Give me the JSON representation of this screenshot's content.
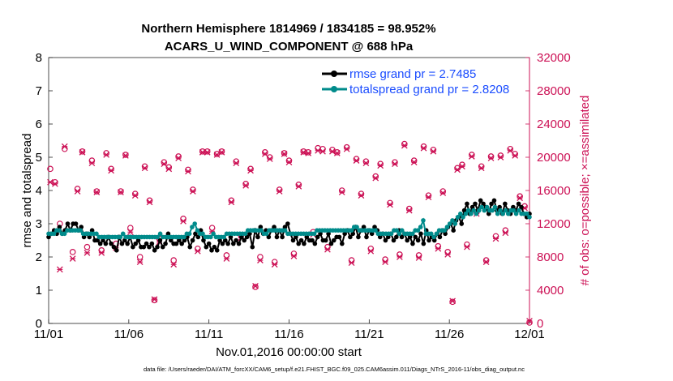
{
  "chart_data": {
    "type": "line",
    "title": "Northern Hemisphere 1814969 / 1834185 = 98.952%",
    "subtitle": "ACARS_U_WIND_COMPONENT @ 688 hPa",
    "xlabel": "Nov.01,2016 00:00:00 start",
    "ylabel": "rmse and totalspread",
    "y2label": "# of obs: o=possible; ×=assimilated",
    "footer": "data file: /Users/raeder/DAI/ATM_forcXX/CAM6_setup/f.e21.FHIST_BGC.f09_025.CAM6assim.011/Diags_NTrS_2016-11/obs_diag_output.nc",
    "xticks": [
      "11/01",
      "11/06",
      "11/11",
      "11/16",
      "11/21",
      "11/26",
      "12/01"
    ],
    "xlim_days": [
      0,
      30
    ],
    "ylim": [
      0,
      8
    ],
    "yticks": [
      "0",
      "1",
      "2",
      "3",
      "4",
      "5",
      "6",
      "7",
      "8"
    ],
    "y2lim": [
      0,
      32000
    ],
    "y2ticks": [
      "0",
      "4000",
      "8000",
      "12000",
      "16000",
      "20000",
      "24000",
      "28000",
      "32000"
    ],
    "grid": false,
    "legend_placement": "top-right",
    "colors": {
      "rmse": "#000000",
      "spread": "#008b8b",
      "obs": "#cc1155",
      "legend_text": "#1a4cff"
    },
    "series": [
      {
        "name": "rmse grand pr = 2.7485",
        "color": "#000000",
        "marker": "circle",
        "values": [
          2.6,
          2.7,
          2.8,
          2.7,
          2.9,
          2.7,
          2.8,
          3.0,
          2.8,
          3.0,
          3.0,
          2.8,
          2.9,
          2.6,
          2.7,
          2.6,
          2.8,
          2.5,
          2.5,
          2.4,
          2.5,
          2.4,
          2.6,
          2.4,
          2.3,
          2.2,
          2.6,
          2.4,
          2.5,
          2.4,
          2.6,
          2.3,
          2.4,
          2.5,
          2.3,
          2.3,
          2.4,
          2.3,
          2.4,
          2.2,
          2.3,
          2.5,
          2.3,
          2.4,
          2.7,
          2.5,
          2.4,
          2.4,
          2.5,
          2.4,
          2.5,
          2.6,
          2.3,
          2.5,
          2.7,
          2.6,
          2.8,
          2.5,
          2.3,
          2.4,
          2.2,
          2.3,
          2.2,
          2.5,
          2.4,
          2.5,
          2.4,
          2.6,
          2.4,
          2.5,
          2.4,
          2.6,
          2.5,
          2.6,
          2.7,
          2.3,
          2.8,
          2.6,
          2.9,
          2.7,
          2.8,
          2.6,
          2.8,
          2.9,
          2.6,
          2.8,
          2.6,
          2.9,
          3.0,
          2.7,
          2.5,
          2.6,
          2.4,
          2.5,
          2.4,
          2.6,
          2.5,
          2.5,
          2.4,
          2.6,
          2.7,
          2.5,
          2.5,
          2.7,
          2.4,
          2.5,
          2.6,
          2.6,
          2.4,
          2.7,
          2.8,
          2.6,
          2.7,
          2.9,
          2.6,
          2.8,
          2.9,
          2.6,
          2.8,
          2.7,
          2.9,
          2.8,
          2.6,
          2.7,
          2.5,
          2.6,
          2.7,
          2.5,
          2.6,
          2.8,
          2.6,
          2.7,
          2.5,
          2.6,
          2.4,
          2.6,
          2.5,
          2.7,
          2.4,
          2.8,
          2.5,
          2.6,
          2.5,
          2.7,
          2.6,
          2.8,
          2.7,
          2.9,
          3.0,
          2.8,
          3.1,
          3.2,
          3.0,
          3.4,
          3.6,
          3.3,
          3.5,
          3.6,
          3.4,
          3.7,
          3.6,
          3.5,
          3.3,
          3.6,
          3.7,
          3.4,
          3.5,
          3.3,
          3.6,
          3.4,
          3.3,
          3.5,
          3.4,
          3.6,
          3.5,
          3.3,
          3.2,
          3.3
        ]
      },
      {
        "name": "totalspread grand pr = 2.8208",
        "color": "#008b8b",
        "marker": "circle",
        "values": [
          2.7,
          2.7,
          2.7,
          2.8,
          2.8,
          2.7,
          2.7,
          2.8,
          2.8,
          2.8,
          2.8,
          2.8,
          2.8,
          2.7,
          2.7,
          2.7,
          2.7,
          2.7,
          2.7,
          2.6,
          2.6,
          2.6,
          2.6,
          2.6,
          2.6,
          2.6,
          2.6,
          2.6,
          2.7,
          2.6,
          2.6,
          2.6,
          2.6,
          2.6,
          2.6,
          2.6,
          2.6,
          2.6,
          2.6,
          2.6,
          2.6,
          2.6,
          2.7,
          2.6,
          2.6,
          2.6,
          2.6,
          2.6,
          2.6,
          2.6,
          2.6,
          2.6,
          2.7,
          2.7,
          2.9,
          3.0,
          2.8,
          2.7,
          2.7,
          2.6,
          2.6,
          2.6,
          2.7,
          2.6,
          2.6,
          2.6,
          2.6,
          2.7,
          2.7,
          2.7,
          2.7,
          2.7,
          2.7,
          2.7,
          2.7,
          2.8,
          2.8,
          2.8,
          2.8,
          2.8,
          2.8,
          2.7,
          2.7,
          2.8,
          2.8,
          2.8,
          2.8,
          2.8,
          2.8,
          2.8,
          2.7,
          2.7,
          2.7,
          2.7,
          2.7,
          2.7,
          2.7,
          2.7,
          2.7,
          2.7,
          2.7,
          2.8,
          2.8,
          2.8,
          2.8,
          2.8,
          2.8,
          2.8,
          2.8,
          2.8,
          2.8,
          2.8,
          2.8,
          2.8,
          2.8,
          2.9,
          2.9,
          2.8,
          2.8,
          2.8,
          2.8,
          2.8,
          2.8,
          2.8,
          2.7,
          2.7,
          2.7,
          2.7,
          2.7,
          2.7,
          2.8,
          2.8,
          2.7,
          2.8,
          2.7,
          2.7,
          2.7,
          2.7,
          2.8,
          2.8,
          2.9,
          3.1,
          2.7,
          2.7,
          2.7,
          2.6,
          2.7,
          2.8,
          2.8,
          2.8,
          2.9,
          3.0,
          3.1,
          3.0,
          3.2,
          3.3,
          3.2,
          3.3,
          3.4,
          3.3,
          3.4,
          3.3,
          3.4,
          3.5,
          3.4,
          3.5,
          3.4,
          3.4,
          3.5,
          3.3,
          3.4,
          3.3,
          3.4,
          3.3,
          3.4,
          3.4,
          3.3,
          3.4,
          3.3,
          3.3,
          3.3,
          3.2
        ]
      },
      {
        "name": "obs_possible",
        "axis": "right",
        "color": "#cc1155",
        "marker": "o",
        "points": [
          [
            0.1,
            18600
          ],
          [
            0.4,
            17000
          ],
          [
            0.7,
            12000
          ],
          [
            1.0,
            21000
          ],
          [
            1.5,
            8600
          ],
          [
            1.8,
            16200
          ],
          [
            2.1,
            20700
          ],
          [
            2.4,
            9200
          ],
          [
            2.7,
            19600
          ],
          [
            3.0,
            15900
          ],
          [
            3.3,
            8800
          ],
          [
            3.6,
            20500
          ],
          [
            3.9,
            18600
          ],
          [
            4.2,
            9600
          ],
          [
            4.5,
            15900
          ],
          [
            4.8,
            20300
          ],
          [
            5.1,
            11500
          ],
          [
            5.4,
            15600
          ],
          [
            5.7,
            8000
          ],
          [
            6.0,
            18900
          ],
          [
            6.3,
            14800
          ],
          [
            6.6,
            2800
          ],
          [
            6.9,
            10200
          ],
          [
            7.2,
            19400
          ],
          [
            7.5,
            18800
          ],
          [
            7.8,
            7600
          ],
          [
            8.1,
            20100
          ],
          [
            8.4,
            12600
          ],
          [
            8.7,
            18500
          ],
          [
            9.0,
            16100
          ],
          [
            9.3,
            9000
          ],
          [
            9.6,
            20700
          ],
          [
            9.9,
            20700
          ],
          [
            10.2,
            11500
          ],
          [
            10.5,
            20400
          ],
          [
            10.8,
            20700
          ],
          [
            11.1,
            8200
          ],
          [
            11.4,
            14800
          ],
          [
            11.7,
            19500
          ],
          [
            12.0,
            10600
          ],
          [
            12.3,
            16800
          ],
          [
            12.6,
            18600
          ],
          [
            12.9,
            4400
          ],
          [
            13.2,
            8000
          ],
          [
            13.5,
            20600
          ],
          [
            13.8,
            20000
          ],
          [
            14.1,
            7400
          ],
          [
            14.4,
            16100
          ],
          [
            14.7,
            20500
          ],
          [
            15.0,
            19600
          ],
          [
            15.3,
            8400
          ],
          [
            15.6,
            16700
          ],
          [
            15.9,
            20700
          ],
          [
            16.2,
            20600
          ],
          [
            16.5,
            11000
          ],
          [
            16.8,
            21100
          ],
          [
            17.1,
            21000
          ],
          [
            17.4,
            9200
          ],
          [
            17.7,
            20900
          ],
          [
            18.0,
            20600
          ],
          [
            18.3,
            16000
          ],
          [
            18.6,
            21200
          ],
          [
            18.9,
            7600
          ],
          [
            19.2,
            19800
          ],
          [
            19.5,
            15600
          ],
          [
            19.8,
            19500
          ],
          [
            20.1,
            9000
          ],
          [
            20.4,
            17700
          ],
          [
            20.7,
            19200
          ],
          [
            21.0,
            7700
          ],
          [
            21.3,
            14500
          ],
          [
            21.6,
            19400
          ],
          [
            21.9,
            8300
          ],
          [
            22.2,
            21600
          ],
          [
            22.5,
            13800
          ],
          [
            22.8,
            19600
          ],
          [
            23.1,
            8200
          ],
          [
            23.4,
            21300
          ],
          [
            23.7,
            15400
          ],
          [
            24.0,
            20900
          ],
          [
            24.3,
            9300
          ],
          [
            24.6,
            15900
          ],
          [
            24.9,
            8600
          ],
          [
            25.2,
            2600
          ],
          [
            25.5,
            18700
          ],
          [
            25.8,
            19100
          ],
          [
            26.1,
            9500
          ],
          [
            26.4,
            20300
          ],
          [
            26.7,
            13400
          ],
          [
            27.0,
            18900
          ],
          [
            27.3,
            7600
          ],
          [
            27.6,
            20100
          ],
          [
            27.9,
            10500
          ],
          [
            28.2,
            20200
          ],
          [
            28.5,
            11200
          ],
          [
            28.8,
            21000
          ],
          [
            29.1,
            20400
          ],
          [
            29.4,
            15300
          ],
          [
            29.7,
            14100
          ],
          [
            30.0,
            100
          ]
        ]
      },
      {
        "name": "obs_assimilated",
        "axis": "right",
        "color": "#cc1155",
        "marker": "x",
        "points": [
          [
            0.1,
            17000
          ],
          [
            0.4,
            16800
          ],
          [
            0.7,
            6500
          ],
          [
            1.0,
            21300
          ],
          [
            1.5,
            7800
          ],
          [
            1.8,
            15900
          ],
          [
            2.1,
            20600
          ],
          [
            2.4,
            8500
          ],
          [
            2.7,
            19300
          ],
          [
            3.0,
            15800
          ],
          [
            3.3,
            8500
          ],
          [
            3.6,
            20300
          ],
          [
            3.9,
            18400
          ],
          [
            4.2,
            9100
          ],
          [
            4.5,
            15800
          ],
          [
            4.8,
            20200
          ],
          [
            5.1,
            11000
          ],
          [
            5.4,
            15400
          ],
          [
            5.7,
            7400
          ],
          [
            6.0,
            18700
          ],
          [
            6.3,
            14600
          ],
          [
            6.6,
            2900
          ],
          [
            6.9,
            9800
          ],
          [
            7.2,
            19200
          ],
          [
            7.5,
            18600
          ],
          [
            7.8,
            7100
          ],
          [
            8.1,
            19900
          ],
          [
            8.4,
            12300
          ],
          [
            8.7,
            18300
          ],
          [
            9.0,
            15900
          ],
          [
            9.3,
            8700
          ],
          [
            9.6,
            20600
          ],
          [
            9.9,
            20600
          ],
          [
            10.2,
            11100
          ],
          [
            10.5,
            20300
          ],
          [
            10.8,
            20600
          ],
          [
            11.1,
            7800
          ],
          [
            11.4,
            14600
          ],
          [
            11.7,
            19300
          ],
          [
            12.0,
            10300
          ],
          [
            12.3,
            16600
          ],
          [
            12.6,
            18400
          ],
          [
            12.9,
            4500
          ],
          [
            13.2,
            7600
          ],
          [
            13.5,
            20400
          ],
          [
            13.8,
            19800
          ],
          [
            14.1,
            7100
          ],
          [
            14.4,
            15900
          ],
          [
            14.7,
            20400
          ],
          [
            15.0,
            19400
          ],
          [
            15.3,
            8100
          ],
          [
            15.6,
            16500
          ],
          [
            15.9,
            20600
          ],
          [
            16.2,
            20500
          ],
          [
            16.5,
            10700
          ],
          [
            16.8,
            20800
          ],
          [
            17.1,
            20700
          ],
          [
            17.4,
            8900
          ],
          [
            17.7,
            20700
          ],
          [
            18.0,
            20500
          ],
          [
            18.3,
            15800
          ],
          [
            18.6,
            21000
          ],
          [
            18.9,
            7300
          ],
          [
            19.2,
            19600
          ],
          [
            19.5,
            15400
          ],
          [
            19.8,
            19300
          ],
          [
            20.1,
            8700
          ],
          [
            20.4,
            17500
          ],
          [
            20.7,
            19000
          ],
          [
            21.0,
            7400
          ],
          [
            21.3,
            14300
          ],
          [
            21.6,
            19200
          ],
          [
            21.9,
            8000
          ],
          [
            22.2,
            21400
          ],
          [
            22.5,
            13600
          ],
          [
            22.8,
            19400
          ],
          [
            23.1,
            7900
          ],
          [
            23.4,
            21100
          ],
          [
            23.7,
            15200
          ],
          [
            24.0,
            20700
          ],
          [
            24.3,
            9000
          ],
          [
            24.6,
            15700
          ],
          [
            24.9,
            8300
          ],
          [
            25.2,
            2700
          ],
          [
            25.5,
            18500
          ],
          [
            25.8,
            18900
          ],
          [
            26.1,
            9200
          ],
          [
            26.4,
            20100
          ],
          [
            26.7,
            13200
          ],
          [
            27.0,
            18700
          ],
          [
            27.3,
            7400
          ],
          [
            27.6,
            19900
          ],
          [
            27.9,
            10200
          ],
          [
            28.2,
            20000
          ],
          [
            28.5,
            10900
          ],
          [
            28.8,
            20800
          ],
          [
            29.1,
            20200
          ],
          [
            29.4,
            15100
          ],
          [
            29.7,
            13900
          ],
          [
            30.0,
            300
          ]
        ]
      }
    ]
  }
}
